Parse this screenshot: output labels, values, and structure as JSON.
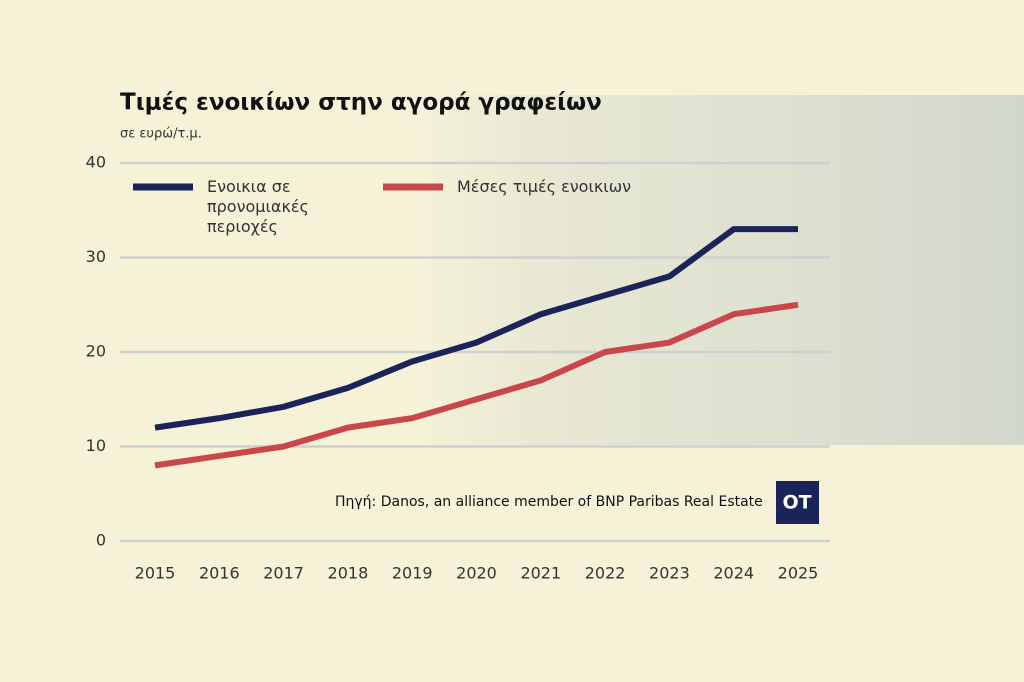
{
  "chart_data": {
    "type": "line",
    "title": "Τιμές ενοικίων στην αγορά γραφείων",
    "subtitle": "σε ευρώ/τ.μ.",
    "categories": [
      "2015",
      "2016",
      "2017",
      "2018",
      "2019",
      "2020",
      "2021",
      "2022",
      "2023",
      "2024",
      "2025"
    ],
    "series": [
      {
        "name": "Ενοικια σε προνομιακές περιοχές",
        "color": "#1b2459",
        "values": [
          12,
          13,
          14.2,
          16.2,
          19,
          21,
          24,
          26,
          28,
          33,
          33
        ]
      },
      {
        "name": "Μέσες τιμές ενοικιων",
        "color": "#c9474a",
        "values": [
          8,
          9,
          10,
          12,
          13,
          15,
          17,
          20,
          21,
          24,
          25
        ]
      }
    ],
    "ylim": [
      0,
      40
    ],
    "yticks": [
      0,
      10,
      20,
      30,
      40
    ],
    "grid": true,
    "source": "Πηγή: Danos, an alliance member of BNP Paribas Real Estate",
    "logo": "OT"
  }
}
